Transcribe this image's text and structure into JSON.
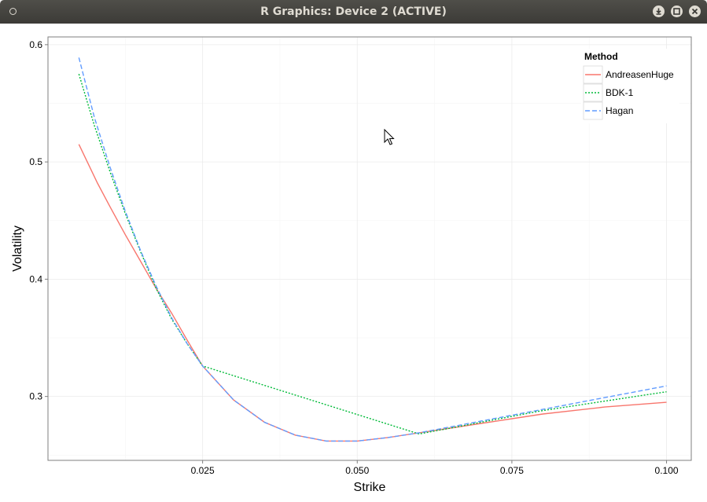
{
  "window": {
    "title": "R Graphics: Device 2 (ACTIVE)",
    "buttons": [
      "minimize-icon",
      "maximize-icon",
      "close-icon"
    ]
  },
  "chart_data": {
    "type": "line",
    "title": "",
    "xlabel": "Strike",
    "ylabel": "Volatility",
    "xlim": [
      0.0,
      0.104
    ],
    "ylim": [
      0.2455,
      0.6066
    ],
    "x_ticks": [
      0.025,
      0.05,
      0.075,
      0.1
    ],
    "x_tick_labels": [
      "0.025",
      "0.050",
      "0.075",
      "0.100"
    ],
    "y_ticks": [
      0.3,
      0.4,
      0.5,
      0.6
    ],
    "y_tick_labels": [
      "0.3",
      "0.4",
      "0.5",
      "0.6"
    ],
    "grid": true,
    "legend": {
      "title": "Method",
      "position": "top-right"
    },
    "series": [
      {
        "name": "AndreasenHuge",
        "color": "#F8766D",
        "dash": "solid",
        "x": [
          0.005,
          0.008,
          0.01,
          0.0125,
          0.015,
          0.0175,
          0.02,
          0.0225,
          0.025,
          0.03,
          0.035,
          0.04,
          0.045,
          0.05,
          0.055,
          0.06,
          0.065,
          0.07,
          0.075,
          0.08,
          0.085,
          0.09,
          0.095,
          0.1
        ],
        "y": [
          0.515,
          0.482,
          0.462,
          0.438,
          0.415,
          0.392,
          0.371,
          0.348,
          0.326,
          0.297,
          0.278,
          0.267,
          0.262,
          0.262,
          0.265,
          0.269,
          0.273,
          0.277,
          0.281,
          0.285,
          0.288,
          0.291,
          0.293,
          0.295
        ]
      },
      {
        "name": "BDK-1",
        "color": "#00BA38",
        "dash": "dotted",
        "x": [
          0.005,
          0.0075,
          0.01,
          0.0125,
          0.015,
          0.0175,
          0.02,
          0.0225,
          0.025,
          0.06,
          0.065,
          0.07,
          0.075,
          0.08,
          0.085,
          0.09,
          0.095,
          0.1
        ],
        "y": [
          0.575,
          0.531,
          0.492,
          0.456,
          0.423,
          0.392,
          0.366,
          0.345,
          0.326,
          0.268,
          0.273,
          0.278,
          0.283,
          0.288,
          0.292,
          0.296,
          0.3,
          0.304
        ]
      },
      {
        "name": "Hagan",
        "color": "#619CFF",
        "dash": "dashed",
        "x": [
          0.005,
          0.0075,
          0.01,
          0.0125,
          0.015,
          0.0175,
          0.02,
          0.0225,
          0.025,
          0.03,
          0.035,
          0.04,
          0.045,
          0.05,
          0.055,
          0.06,
          0.065,
          0.07,
          0.075,
          0.08,
          0.085,
          0.09,
          0.095,
          0.1
        ],
        "y": [
          0.589,
          0.538,
          0.496,
          0.458,
          0.424,
          0.394,
          0.367,
          0.345,
          0.326,
          0.297,
          0.278,
          0.267,
          0.262,
          0.262,
          0.265,
          0.269,
          0.274,
          0.279,
          0.284,
          0.289,
          0.294,
          0.299,
          0.304,
          0.309
        ]
      }
    ]
  }
}
